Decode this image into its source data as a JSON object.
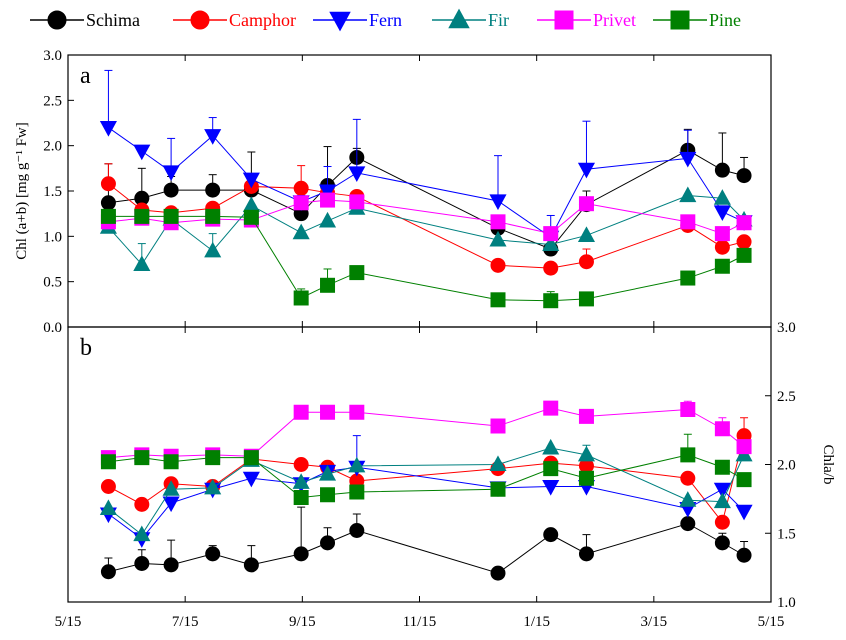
{
  "legend": [
    {
      "name": "Schima",
      "color": "#000000",
      "marker": "circle"
    },
    {
      "name": "Camphor",
      "color": "#ff0000",
      "marker": "circle"
    },
    {
      "name": "Fern",
      "color": "#0000ff",
      "marker": "triangle-down"
    },
    {
      "name": "Fir",
      "color": "#008080",
      "marker": "triangle-up"
    },
    {
      "name": "Privet",
      "color": "#ff00ff",
      "marker": "square"
    },
    {
      "name": "Pine",
      "color": "#008000",
      "marker": "square"
    }
  ],
  "chart_data": [
    {
      "type": "line",
      "panel_label": "a",
      "ylabel": "Chl (a+b) [mg g⁻¹ Fw]",
      "xlim": [
        0,
        12
      ],
      "x_ticks": [
        0,
        2,
        4,
        6,
        8,
        10,
        12
      ],
      "x_tick_labels": [
        "5/15",
        "7/15",
        "9/15",
        "11/15",
        "1/15",
        "3/15",
        "5/15"
      ],
      "ylim": [
        0,
        3
      ],
      "y_ticks": [
        0,
        0.5,
        1,
        1.5,
        2,
        2.5,
        3
      ],
      "y_tick_labels": [
        "0.0",
        "0.5",
        "1.0",
        "1.5",
        "2.0",
        "2.5",
        "3.0"
      ],
      "grid": false,
      "legend_position": "top",
      "series": [
        {
          "name": "Schima",
          "x": [
            0.69,
            1.26,
            1.76,
            2.47,
            3.13,
            3.98,
            4.43,
            4.93,
            7.34,
            8.24,
            8.85,
            10.58,
            11.17,
            11.54
          ],
          "y": [
            1.37,
            1.42,
            1.51,
            1.51,
            1.51,
            1.25,
            1.56,
            1.87,
            1.09,
            0.86,
            1.35,
            1.95,
            1.73,
            1.67
          ],
          "err": [
            0.43,
            0.33,
            0.15,
            0.17,
            0.42,
            0.09,
            0.43,
            0.1,
            0.08,
            0.05,
            0.15,
            0.23,
            0.41,
            0.2
          ]
        },
        {
          "name": "Camphor",
          "x": [
            0.69,
            1.26,
            1.76,
            2.47,
            3.13,
            3.98,
            4.43,
            4.93,
            7.34,
            8.24,
            8.85,
            10.58,
            11.17,
            11.54
          ],
          "y": [
            1.58,
            1.29,
            1.26,
            1.31,
            1.55,
            1.53,
            1.48,
            1.44,
            0.68,
            0.65,
            0.72,
            1.12,
            0.88,
            0.94
          ],
          "err": [
            0.22,
            0.05,
            0.05,
            0.05,
            0.05,
            0.25,
            0.05,
            0.05,
            0.04,
            0.04,
            0.14,
            0.05,
            0.05,
            0.05
          ]
        },
        {
          "name": "Fern",
          "x": [
            0.69,
            1.26,
            1.76,
            2.47,
            3.13,
            3.98,
            4.43,
            4.93,
            7.34,
            8.24,
            8.85,
            10.58,
            11.17,
            11.54
          ],
          "y": [
            2.2,
            1.94,
            1.71,
            2.11,
            1.63,
            1.38,
            1.5,
            1.7,
            1.39,
            0.99,
            1.74,
            1.86,
            1.27,
            1.16
          ],
          "err": [
            0.63,
            0.06,
            0.37,
            0.2,
            0.06,
            0.07,
            0.27,
            0.59,
            0.5,
            0.24,
            0.53,
            0.31,
            0.06,
            0.06
          ]
        },
        {
          "name": "Fir",
          "x": [
            0.69,
            1.26,
            1.76,
            2.47,
            3.13,
            3.98,
            4.43,
            4.93,
            7.34,
            8.24,
            8.85,
            10.58,
            11.17,
            11.54
          ],
          "y": [
            1.1,
            0.69,
            1.19,
            0.84,
            1.34,
            1.04,
            1.17,
            1.31,
            0.96,
            0.91,
            1.01,
            1.45,
            1.42,
            1.18
          ],
          "err": [
            0.05,
            0.23,
            0.05,
            0.19,
            0.05,
            0.05,
            0.05,
            0.05,
            0.05,
            0.05,
            0.05,
            0.05,
            0.05,
            0.05
          ]
        },
        {
          "name": "Privet",
          "x": [
            0.69,
            1.26,
            1.76,
            2.47,
            3.13,
            3.98,
            4.43,
            4.93,
            7.34,
            8.24,
            8.85,
            10.58,
            11.17,
            11.54
          ],
          "y": [
            1.16,
            1.2,
            1.15,
            1.19,
            1.18,
            1.37,
            1.4,
            1.38,
            1.16,
            1.03,
            1.36,
            1.16,
            1.03,
            1.15
          ],
          "err": [
            0.04,
            0.04,
            0.04,
            0.04,
            0.04,
            0.04,
            0.04,
            0.04,
            0.04,
            0.04,
            0.04,
            0.04,
            0.04,
            0.04
          ]
        },
        {
          "name": "Pine",
          "x": [
            0.69,
            1.26,
            1.76,
            2.47,
            3.13,
            3.98,
            4.43,
            4.93,
            7.34,
            8.24,
            8.85,
            10.58,
            11.17,
            11.54
          ],
          "y": [
            1.22,
            1.22,
            1.22,
            1.22,
            1.21,
            0.32,
            0.46,
            0.6,
            0.3,
            0.29,
            0.31,
            0.54,
            0.67,
            0.79
          ],
          "err": [
            0.04,
            0.04,
            0.04,
            0.04,
            0.04,
            0.1,
            0.18,
            0.04,
            0.04,
            0.1,
            0.04,
            0.04,
            0.04,
            0.04
          ]
        }
      ]
    },
    {
      "type": "line",
      "panel_label": "b",
      "ylabel": "Chla/b",
      "xlim": [
        0,
        12
      ],
      "x_ticks": [
        0,
        2,
        4,
        6,
        8,
        10,
        12
      ],
      "x_tick_labels": [
        "5/15",
        "7/15",
        "9/15",
        "11/15",
        "1/15",
        "3/15",
        "5/15"
      ],
      "ylim": [
        1,
        3
      ],
      "y_ticks": [
        1,
        1.5,
        2,
        2.5,
        3
      ],
      "y_tick_labels": [
        "1.0",
        "1.5",
        "2.0",
        "2.5",
        "3.0"
      ],
      "grid": false,
      "series": [
        {
          "name": "Schima",
          "x": [
            0.69,
            1.26,
            1.76,
            2.47,
            3.13,
            3.98,
            4.43,
            4.93,
            7.34,
            8.24,
            8.85,
            10.58,
            11.17,
            11.54
          ],
          "y": [
            1.22,
            1.28,
            1.27,
            1.35,
            1.27,
            1.35,
            1.43,
            1.52,
            1.21,
            1.49,
            1.35,
            1.57,
            1.43,
            1.34
          ],
          "err": [
            0.1,
            0.1,
            0.18,
            0.06,
            0.14,
            0.34,
            0.11,
            0.12,
            0.04,
            0.04,
            0.14,
            0.04,
            0.07,
            0.1
          ]
        },
        {
          "name": "Camphor",
          "x": [
            0.69,
            1.26,
            1.76,
            2.47,
            3.13,
            3.98,
            4.43,
            4.93,
            7.34,
            8.24,
            8.85,
            10.58,
            11.17,
            11.54
          ],
          "y": [
            1.84,
            1.71,
            1.86,
            1.84,
            2.04,
            2.0,
            1.98,
            1.88,
            1.97,
            2.01,
            1.99,
            1.9,
            1.58,
            2.21
          ],
          "err": [
            0.04,
            0.04,
            0.04,
            0.04,
            0.04,
            0.04,
            0.04,
            0.04,
            0.04,
            0.04,
            0.04,
            0.04,
            0.04,
            0.13
          ]
        },
        {
          "name": "Fern",
          "x": [
            0.69,
            1.26,
            1.76,
            2.47,
            3.13,
            3.98,
            4.43,
            4.93,
            7.34,
            8.24,
            8.85,
            10.58,
            11.17,
            11.54
          ],
          "y": [
            1.64,
            1.46,
            1.72,
            1.82,
            1.9,
            1.86,
            1.95,
            1.98,
            1.83,
            1.84,
            1.84,
            1.68,
            1.82,
            1.66
          ],
          "err": [
            0.04,
            0.04,
            0.04,
            0.04,
            0.04,
            0.04,
            0.04,
            0.23,
            0.04,
            0.04,
            0.04,
            0.04,
            0.04,
            0.04
          ]
        },
        {
          "name": "Fir",
          "x": [
            0.69,
            1.26,
            1.76,
            2.47,
            3.13,
            3.98,
            4.43,
            4.93,
            7.34,
            8.24,
            8.85,
            10.58,
            11.17,
            11.54
          ],
          "y": [
            1.68,
            1.49,
            1.82,
            1.83,
            2.03,
            1.87,
            1.93,
            1.99,
            2.0,
            2.12,
            2.07,
            1.74,
            1.73,
            2.07
          ],
          "err": [
            0.04,
            0.04,
            0.04,
            0.04,
            0.04,
            0.04,
            0.04,
            0.04,
            0.04,
            0.04,
            0.07,
            0.04,
            0.04,
            0.04
          ]
        },
        {
          "name": "Privet",
          "x": [
            0.69,
            1.26,
            1.76,
            2.47,
            3.13,
            3.98,
            4.43,
            4.93,
            7.34,
            8.24,
            8.85,
            10.58,
            11.17,
            11.54
          ],
          "y": [
            2.05,
            2.07,
            2.06,
            2.07,
            2.06,
            2.38,
            2.38,
            2.38,
            2.28,
            2.41,
            2.35,
            2.4,
            2.26,
            2.13
          ],
          "err": [
            0.03,
            0.03,
            0.03,
            0.03,
            0.03,
            0.03,
            0.03,
            0.03,
            0.03,
            0.03,
            0.03,
            0.06,
            0.08,
            0.03
          ]
        },
        {
          "name": "Pine",
          "x": [
            0.69,
            1.26,
            1.76,
            2.47,
            3.13,
            3.98,
            4.43,
            4.93,
            7.34,
            8.24,
            8.85,
            10.58,
            11.17,
            11.54
          ],
          "y": [
            2.02,
            2.05,
            2.02,
            2.05,
            2.05,
            1.76,
            1.78,
            1.8,
            1.82,
            1.97,
            1.9,
            2.07,
            1.98,
            1.89
          ],
          "err": [
            0.04,
            0.04,
            0.04,
            0.04,
            0.04,
            0.04,
            0.04,
            0.04,
            0.04,
            0.04,
            0.04,
            0.15,
            0.04,
            0.04
          ]
        }
      ]
    }
  ]
}
